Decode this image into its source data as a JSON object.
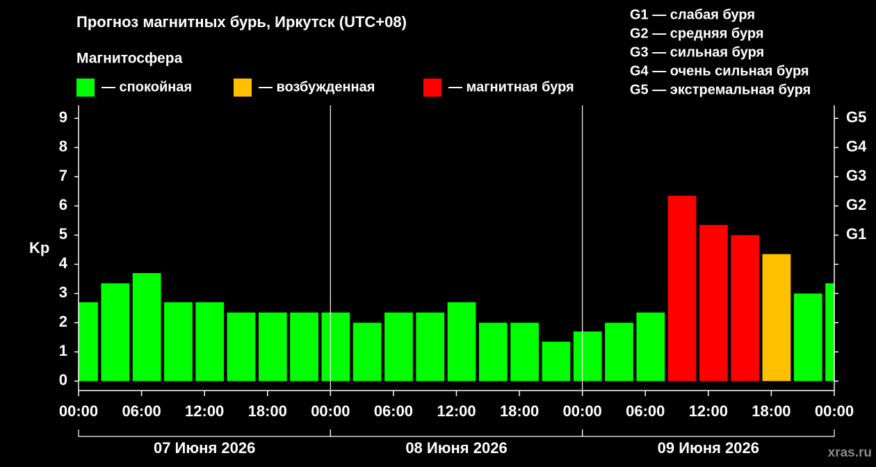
{
  "chart_data": {
    "type": "bar",
    "title": "Прогноз магнитных бурь, Иркутск (UTC+08)",
    "legend_title": "Магнитосфера",
    "legend": [
      {
        "color": "#00ff00",
        "label": "— спокойная"
      },
      {
        "color": "#ffc000",
        "label": "— возбужденная"
      },
      {
        "color": "#ff0000",
        "label": "— магнитная буря"
      }
    ],
    "storm_levels": [
      "G1 — слабая буря",
      "G2 — средняя буря",
      "G3 — сильная буря",
      "G4 — очень сильная буря",
      "G5 — экстремальная буря"
    ],
    "ylabel": "Kp",
    "x": [
      0.5,
      3.5,
      6.5,
      9.5,
      12.5,
      15.5,
      18.5,
      21.5,
      24.5,
      27.5,
      30.5,
      33.5,
      36.5,
      39.5,
      42.5,
      45.5,
      48.5,
      51.5,
      54.5,
      57.5,
      60.5,
      63.5,
      66.5,
      69.5,
      72.5
    ],
    "values": [
      2.7,
      3.35,
      3.7,
      2.7,
      2.7,
      2.35,
      2.35,
      2.35,
      2.35,
      2.0,
      2.35,
      2.35,
      2.7,
      2.0,
      2.0,
      1.35,
      1.7,
      2.0,
      2.35,
      6.35,
      5.35,
      5.0,
      4.35,
      3.0,
      3.35
    ],
    "colors": [
      "#00ff00",
      "#00ff00",
      "#00ff00",
      "#00ff00",
      "#00ff00",
      "#00ff00",
      "#00ff00",
      "#00ff00",
      "#00ff00",
      "#00ff00",
      "#00ff00",
      "#00ff00",
      "#00ff00",
      "#00ff00",
      "#00ff00",
      "#00ff00",
      "#00ff00",
      "#00ff00",
      "#00ff00",
      "#ff0000",
      "#ff0000",
      "#ff0000",
      "#ffc000",
      "#00ff00",
      "#00ff00"
    ],
    "xlim": [
      0,
      72
    ],
    "xticks": [
      {
        "value": 0,
        "label": "00:00"
      },
      {
        "value": 6,
        "label": "06:00"
      },
      {
        "value": 12,
        "label": "12:00"
      },
      {
        "value": 18,
        "label": "18:00"
      },
      {
        "value": 24,
        "label": "00:00"
      },
      {
        "value": 30,
        "label": "06:00"
      },
      {
        "value": 36,
        "label": "12:00"
      },
      {
        "value": 42,
        "label": "18:00"
      },
      {
        "value": 48,
        "label": "00:00"
      },
      {
        "value": 54,
        "label": "06:00"
      },
      {
        "value": 60,
        "label": "12:00"
      },
      {
        "value": 66,
        "label": "18:00"
      },
      {
        "value": 72,
        "label": "00:00"
      }
    ],
    "days": [
      "07 Июня 2026",
      "08 Июня 2026",
      "09 Июня 2026"
    ],
    "ylim": [
      -0.3,
      9.4
    ],
    "yticks": [
      0,
      1,
      2,
      3,
      4,
      5,
      6,
      7,
      8,
      9
    ],
    "y2ticks": [
      {
        "value": 5,
        "label": "G1"
      },
      {
        "value": 6,
        "label": "G2"
      },
      {
        "value": 7,
        "label": "G3"
      },
      {
        "value": 8,
        "label": "G4"
      },
      {
        "value": 9,
        "label": "G5"
      }
    ],
    "watermark": "xras.ru"
  }
}
